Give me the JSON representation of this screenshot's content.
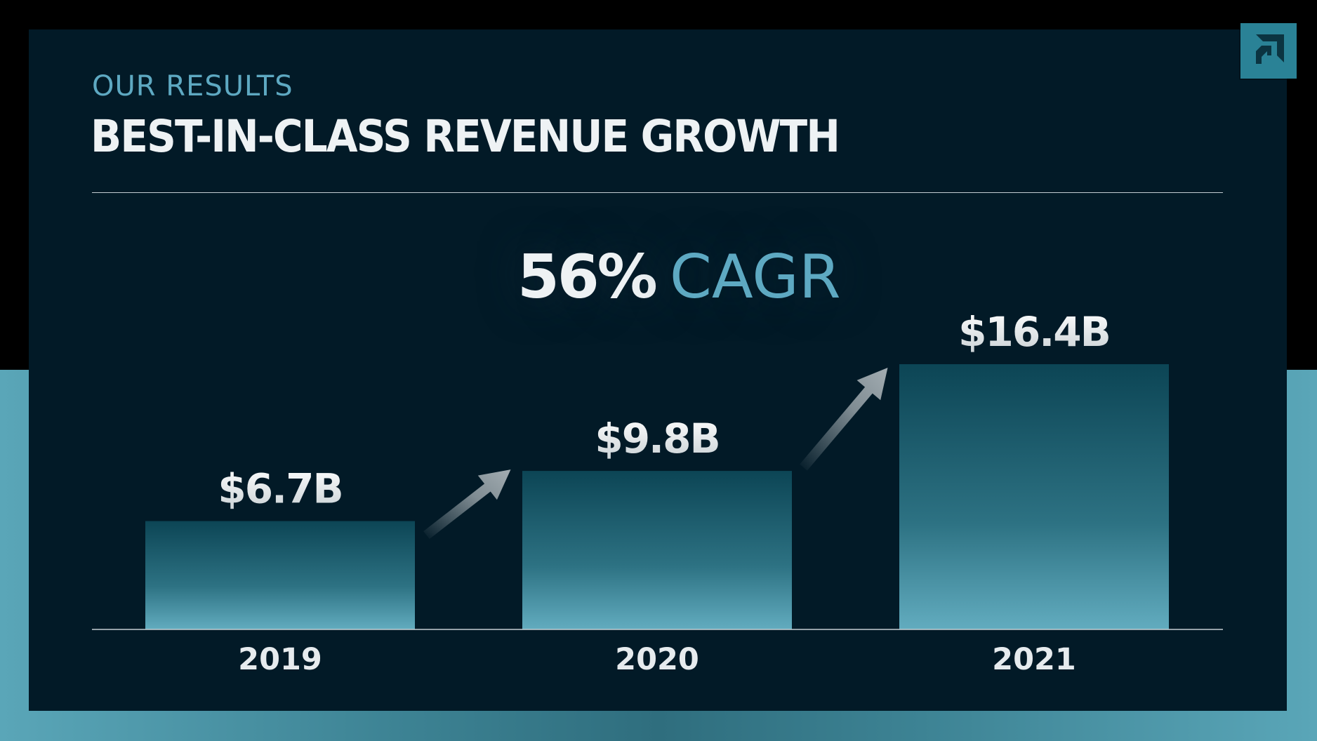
{
  "header": {
    "eyebrow": "OUR RESULTS",
    "title": "BEST-IN-CLASS REVENUE GROWTH"
  },
  "highlight": {
    "value": "56%",
    "label": "CAGR"
  },
  "logo": {
    "icon": "amd-arrow-logo-icon"
  },
  "colors": {
    "panel": "#021a27",
    "accent": "#5ea9c2",
    "bar_top": "#0c4555",
    "bar_bottom": "#62acbf",
    "text": "#eef2f4"
  },
  "chart_data": {
    "type": "bar",
    "title": "",
    "xlabel": "",
    "ylabel": "",
    "categories": [
      "2019",
      "2020",
      "2021"
    ],
    "values": [
      6.7,
      9.8,
      16.4
    ],
    "value_labels": [
      "$6.7B",
      "$9.8B",
      "$16.4B"
    ],
    "unit": "B",
    "ylim": [
      0,
      16.4
    ],
    "grid": false,
    "legend": "none"
  }
}
